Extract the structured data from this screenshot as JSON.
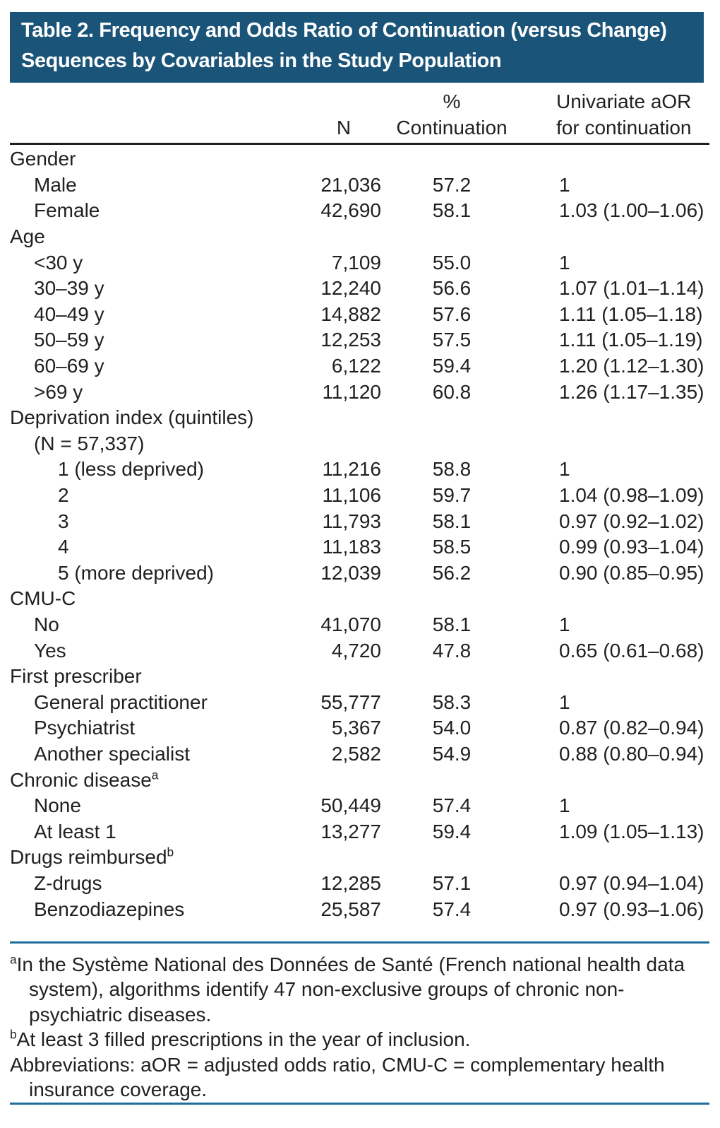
{
  "table": {
    "title": "Table 2. Frequency and Odds Ratio of Continuation (versus Change) Sequences by Covariables in the Study Population",
    "columns": {
      "n": "N",
      "pct_line1": "%",
      "pct_line2": "Continuation",
      "aor_line1": "Univariate aOR",
      "aor_line2": "for continuation"
    },
    "rows": [
      {
        "label": "Gender",
        "indent": 0,
        "n": "",
        "pct": "",
        "aor": ""
      },
      {
        "label": "Male",
        "indent": 1,
        "n": "21,036",
        "pct": "57.2",
        "aor": "1"
      },
      {
        "label": "Female",
        "indent": 1,
        "n": "42,690",
        "pct": "58.1",
        "aor": "1.03 (1.00–1.06)"
      },
      {
        "label": "Age",
        "indent": 0,
        "n": "",
        "pct": "",
        "aor": ""
      },
      {
        "label": "<30 y",
        "indent": 1,
        "n": "7,109",
        "pct": "55.0",
        "aor": "1"
      },
      {
        "label": "30–39 y",
        "indent": 1,
        "n": "12,240",
        "pct": "56.6",
        "aor": "1.07 (1.01–1.14)"
      },
      {
        "label": "40–49 y",
        "indent": 1,
        "n": "14,882",
        "pct": "57.6",
        "aor": "1.11 (1.05–1.18)"
      },
      {
        "label": "50–59 y",
        "indent": 1,
        "n": "12,253",
        "pct": "57.5",
        "aor": "1.11 (1.05–1.19)"
      },
      {
        "label": "60–69 y",
        "indent": 1,
        "n": "6,122",
        "pct": "59.4",
        "aor": "1.20 (1.12–1.30)"
      },
      {
        "label": ">69 y",
        "indent": 1,
        "n": "11,120",
        "pct": "60.8",
        "aor": "1.26 (1.17–1.35)"
      },
      {
        "label": "Deprivation index (quintiles)",
        "indent": 0,
        "n": "",
        "pct": "",
        "aor": ""
      },
      {
        "label": "(N = 57,337)",
        "indent": 1,
        "n": "",
        "pct": "",
        "aor": ""
      },
      {
        "label": "1 (less deprived)",
        "indent": 2,
        "n": "11,216",
        "pct": "58.8",
        "aor": "1"
      },
      {
        "label": "2",
        "indent": 2,
        "n": "11,106",
        "pct": "59.7",
        "aor": "1.04 (0.98–1.09)"
      },
      {
        "label": "3",
        "indent": 2,
        "n": "11,793",
        "pct": "58.1",
        "aor": "0.97 (0.92–1.02)"
      },
      {
        "label": "4",
        "indent": 2,
        "n": "11,183",
        "pct": "58.5",
        "aor": "0.99 (0.93–1.04)"
      },
      {
        "label": "5 (more deprived)",
        "indent": 2,
        "n": "12,039",
        "pct": "56.2",
        "aor": "0.90 (0.85–0.95)"
      },
      {
        "label": "CMU-C",
        "indent": 0,
        "n": "",
        "pct": "",
        "aor": ""
      },
      {
        "label": "No",
        "indent": 1,
        "n": "41,070",
        "pct": "58.1",
        "aor": "1"
      },
      {
        "label": "Yes",
        "indent": 1,
        "n": "4,720",
        "pct": "47.8",
        "aor": "0.65 (0.61–0.68)"
      },
      {
        "label": "First prescriber",
        "indent": 0,
        "n": "",
        "pct": "",
        "aor": ""
      },
      {
        "label": "General practitioner",
        "indent": 1,
        "n": "55,777",
        "pct": "58.3",
        "aor": "1"
      },
      {
        "label": "Psychiatrist",
        "indent": 1,
        "n": "5,367",
        "pct": "54.0",
        "aor": "0.87 (0.82–0.94)"
      },
      {
        "label": "Another specialist",
        "indent": 1,
        "n": "2,582",
        "pct": "54.9",
        "aor": "0.88 (0.80–0.94)"
      },
      {
        "label": "Chronic disease",
        "sup": "a",
        "indent": 0,
        "n": "",
        "pct": "",
        "aor": ""
      },
      {
        "label": "None",
        "indent": 1,
        "n": "50,449",
        "pct": "57.4",
        "aor": "1"
      },
      {
        "label": "At least 1",
        "indent": 1,
        "n": "13,277",
        "pct": "59.4",
        "aor": "1.09 (1.05–1.13)"
      },
      {
        "label": "Drugs reimbursed",
        "sup": "b",
        "indent": 0,
        "n": "",
        "pct": "",
        "aor": ""
      },
      {
        "label": "Z-drugs",
        "indent": 1,
        "n": "12,285",
        "pct": "57.1",
        "aor": "0.97 (0.94–1.04)"
      },
      {
        "label": "Benzodiazepines",
        "indent": 1,
        "n": "25,587",
        "pct": "57.4",
        "aor": "0.97 (0.93–1.06)"
      }
    ],
    "footnotes": [
      {
        "marker": "a",
        "text": "In the Système National des Données de Santé (French national health data system), algorithms identify 47 non-exclusive groups of chronic non-psychiatric diseases."
      },
      {
        "marker": "b",
        "text": "At least 3 filled prescriptions in the year of inclusion."
      },
      {
        "marker": "",
        "text": "Abbreviations: aOR = adjusted odds ratio, CMU-C = complementary health insurance coverage."
      }
    ],
    "colors": {
      "banner": "#1a5479",
      "rule_blue": "#1e6e9b",
      "rule_dark": "#231f20",
      "text": "#231f20",
      "title_text": "#ffffff"
    }
  }
}
